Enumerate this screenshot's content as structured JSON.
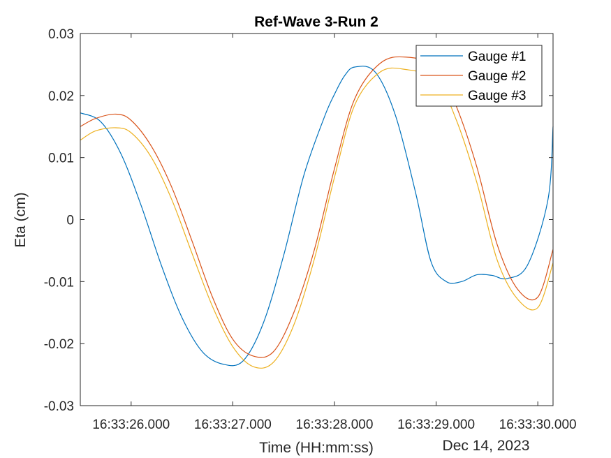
{
  "chart_data": {
    "type": "line",
    "title": "Ref-Wave 3-Run 2",
    "xlabel": "Time (HH:mm:ss)",
    "ylabel": "Eta (cm)",
    "date_label": "Dec 14, 2023",
    "xlim": [
      "16:33:25.500",
      "16:33:30.150"
    ],
    "ylim": [
      -0.03,
      0.03
    ],
    "x_ticks": [
      "16:33:26.000",
      "16:33:27.000",
      "16:33:28.000",
      "16:33:29.000",
      "16:33:30.000"
    ],
    "y_ticks": [
      "0.03",
      "0.02",
      "0.01",
      "0",
      "-0.01",
      "-0.02",
      "-0.03"
    ],
    "grid": false,
    "legend_position": "top-right",
    "series": [
      {
        "name": "Gauge #1",
        "color": "#0072BD",
        "x": [
          "16:33:25.500",
          "16:33:25.700",
          "16:33:25.900",
          "16:33:26.100",
          "16:33:26.300",
          "16:33:26.500",
          "16:33:26.700",
          "16:33:26.900",
          "16:33:27.100",
          "16:33:27.300",
          "16:33:27.500",
          "16:33:27.700",
          "16:33:27.900",
          "16:33:28.000",
          "16:33:28.100",
          "16:33:28.200",
          "16:33:28.400",
          "16:33:28.600",
          "16:33:28.800",
          "16:33:28.950",
          "16:33:29.100",
          "16:33:29.250",
          "16:33:29.400",
          "16:33:29.550",
          "16:33:29.700",
          "16:33:29.900",
          "16:33:30.100",
          "16:33:30.150"
        ],
        "y": [
          0.0172,
          0.0158,
          0.0106,
          0.0022,
          -0.0075,
          -0.0158,
          -0.0213,
          -0.0233,
          -0.0228,
          -0.0167,
          -0.0058,
          0.0072,
          0.0165,
          0.0202,
          0.0232,
          0.0246,
          0.0238,
          0.0168,
          0.0042,
          -0.0068,
          -0.01,
          -0.01,
          -0.0089,
          -0.009,
          -0.0095,
          -0.0073,
          0.0032,
          0.015
        ]
      },
      {
        "name": "Gauge #2",
        "color": "#D95319",
        "x": [
          "16:33:25.500",
          "16:33:25.650",
          "16:33:25.850",
          "16:33:26.000",
          "16:33:26.200",
          "16:33:26.400",
          "16:33:26.600",
          "16:33:26.800",
          "16:33:27.000",
          "16:33:27.200",
          "16:33:27.400",
          "16:33:27.600",
          "16:33:27.800",
          "16:33:28.000",
          "16:33:28.200",
          "16:33:28.450",
          "16:33:28.700",
          "16:33:29.000",
          "16:33:29.200",
          "16:33:29.400",
          "16:33:29.600",
          "16:33:29.800",
          "16:33:30.000",
          "16:33:30.150"
        ],
        "y": [
          0.015,
          0.0163,
          0.017,
          0.016,
          0.0118,
          0.0052,
          -0.0035,
          -0.0125,
          -0.0193,
          -0.022,
          -0.0213,
          -0.015,
          -0.005,
          0.0082,
          0.0195,
          0.0252,
          0.0262,
          0.0246,
          0.0182,
          0.0085,
          -0.004,
          -0.0112,
          -0.0125,
          -0.0048
        ]
      },
      {
        "name": "Gauge #3",
        "color": "#EDB120",
        "x": [
          "16:33:25.500",
          "16:33:25.650",
          "16:33:25.850",
          "16:33:26.000",
          "16:33:26.200",
          "16:33:26.400",
          "16:33:26.600",
          "16:33:26.800",
          "16:33:27.000",
          "16:33:27.200",
          "16:33:27.400",
          "16:33:27.600",
          "16:33:27.800",
          "16:33:28.000",
          "16:33:28.200",
          "16:33:28.450",
          "16:33:28.700",
          "16:33:29.000",
          "16:33:29.200",
          "16:33:29.400",
          "16:33:29.600",
          "16:33:29.800",
          "16:33:30.000",
          "16:33:30.150"
        ],
        "y": [
          0.0128,
          0.0143,
          0.0148,
          0.014,
          0.01,
          0.0032,
          -0.0055,
          -0.014,
          -0.0205,
          -0.0237,
          -0.023,
          -0.017,
          -0.0065,
          0.0068,
          0.0185,
          0.0238,
          0.0242,
          0.0225,
          0.016,
          0.006,
          -0.0065,
          -0.0128,
          -0.0142,
          -0.007
        ]
      }
    ]
  }
}
